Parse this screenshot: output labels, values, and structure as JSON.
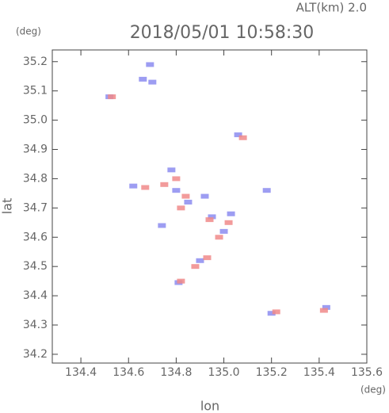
{
  "chart_data": {
    "type": "scatter",
    "title": "2018/05/01 10:58:30",
    "subtitle": "ALT(km) 2.0",
    "x_label": "lon",
    "y_label": "lat",
    "x_unit": "(deg)",
    "y_unit": "(deg)",
    "xlim": [
      134.28,
      135.6
    ],
    "ylim": [
      34.17,
      35.24
    ],
    "xticks": [
      134.4,
      134.6,
      134.8,
      {
        "value": 135,
        "label": "135.0"
      },
      135.2,
      135.4,
      135.6
    ],
    "yticks": [
      34.2,
      34.3,
      34.4,
      34.5,
      34.6,
      34.7,
      34.8,
      34.9,
      {
        "value": 35,
        "label": "35.0"
      },
      35.1,
      35.2
    ],
    "series": [
      {
        "color": "#8c8cf0",
        "x": [
          134.69,
          134.66,
          134.7,
          134.52,
          135.06,
          134.78,
          134.62,
          134.8,
          134.85,
          134.92,
          134.95,
          135.0,
          134.9,
          134.81,
          135.18,
          135.2,
          135.43,
          134.74,
          135.03
        ],
        "values": [
          35.19,
          35.14,
          35.13,
          35.08,
          34.95,
          34.83,
          34.775,
          34.76,
          34.72,
          34.74,
          34.67,
          34.62,
          34.52,
          34.445,
          34.76,
          34.34,
          34.36,
          34.64,
          34.68
        ]
      },
      {
        "color": "#f08a8a",
        "x": [
          134.53,
          134.8,
          134.75,
          134.67,
          134.84,
          134.82,
          134.94,
          135.02,
          134.98,
          134.88,
          134.93,
          134.82,
          135.22,
          135.42,
          135.08
        ],
        "values": [
          35.08,
          34.8,
          34.78,
          34.77,
          34.74,
          34.7,
          34.66,
          34.65,
          34.6,
          34.5,
          34.53,
          34.45,
          34.345,
          34.35,
          34.94
        ]
      }
    ]
  }
}
